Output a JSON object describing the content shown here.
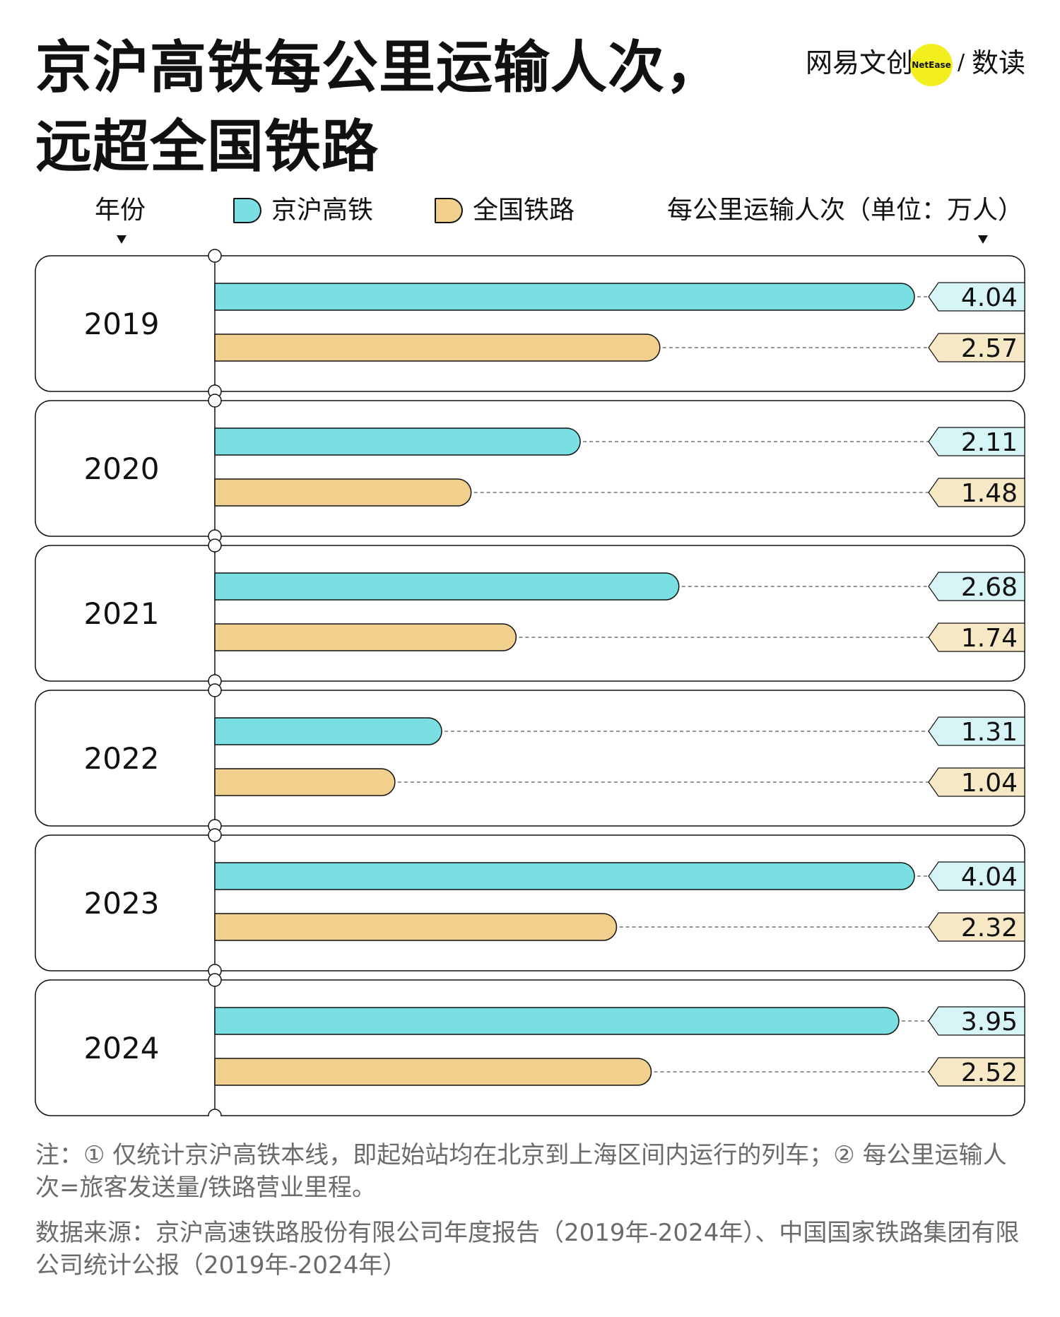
{
  "title": {
    "line1": "京沪高铁每公里运输人次，",
    "line2": "远超全国铁路"
  },
  "brand": {
    "name": "网易文创",
    "badge": "NetEase",
    "slash": "/",
    "column": "数读"
  },
  "header": {
    "year_label": "年份",
    "unit_label": "每公里运输人次（单位：万人）"
  },
  "colors": {
    "hsr": "#7adfe3",
    "hsr_tag": "#d7f5f6",
    "national": "#f1cf8d",
    "national_tag": "#f7e8c6",
    "outline": "#111111"
  },
  "chart_data": {
    "type": "bar",
    "orientation": "horizontal",
    "categories": [
      "2019",
      "2020",
      "2021",
      "2022",
      "2023",
      "2024"
    ],
    "series": [
      {
        "name": "京沪高铁",
        "values": [
          4.04,
          2.11,
          2.68,
          1.31,
          4.04,
          3.95
        ]
      },
      {
        "name": "全国铁路",
        "values": [
          2.57,
          1.48,
          1.74,
          1.04,
          2.32,
          2.52
        ]
      }
    ],
    "value_labels": {
      "京沪高铁": [
        "4.04",
        "2.11",
        "2.68",
        "1.31",
        "4.04",
        "3.95"
      ],
      "全国铁路": [
        "2.57",
        "1.48",
        "1.74",
        "1.04",
        "2.32",
        "2.52"
      ]
    },
    "xlim": [
      0,
      4.04
    ],
    "grid": false,
    "legend": "top"
  },
  "notes": {
    "note": "注：① 仅统计京沪高铁本线，即起始站均在北京到上海区间内运行的列车；② 每公里运输人次=旅客发送量/铁路营业里程。",
    "source": "数据来源：京沪高速铁路股份有限公司年度报告（2019年-2024年）、中国国家铁路集团有限公司统计公报（2019年-2024年）"
  }
}
